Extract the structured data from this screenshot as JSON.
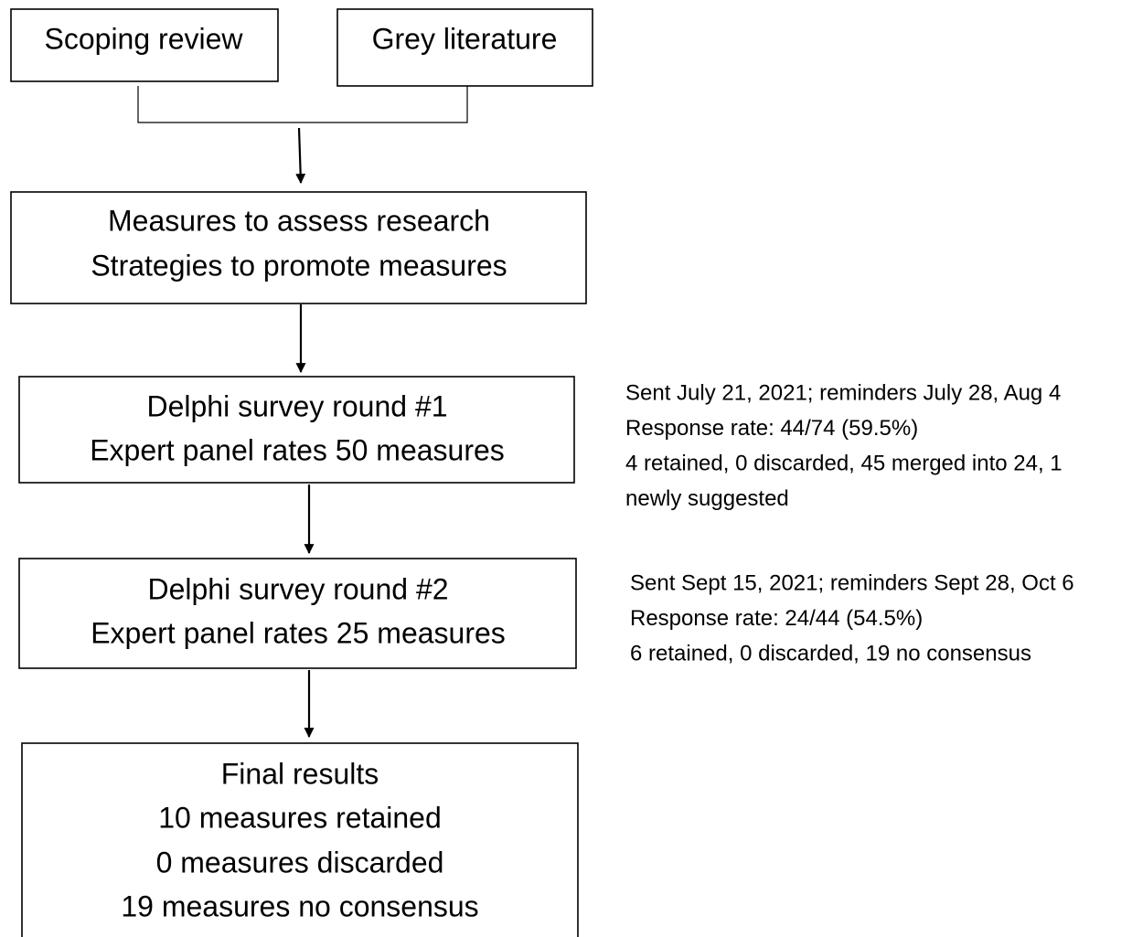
{
  "nodes": [
    {
      "lines": [
        "Scoping review"
      ]
    },
    {
      "lines": [
        "Grey literature"
      ]
    },
    {
      "lines": [
        "Measures to assess research",
        "Strategies to promote measures"
      ]
    },
    {
      "lines": [
        "Delphi survey round #1",
        "Expert panel rates 50 measures"
      ]
    },
    {
      "lines": [
        "Delphi survey round #2",
        "Expert panel rates 25 measures"
      ]
    },
    {
      "lines": [
        "Final results",
        "10 measures retained",
        "0 measures discarded",
        "19 measures no consensus"
      ]
    }
  ],
  "notes": [
    {
      "lines": [
        "Sent July 21, 2021; reminders July 28, Aug 4",
        "Response rate: 44/74 (59.5%)",
        "4 retained, 0 discarded, 45 merged into 24, 1",
        "newly suggested"
      ]
    },
    {
      "lines": [
        "Sent Sept 15, 2021; reminders Sept 28, Oct 6",
        "Response rate: 24/44 (54.5%)",
        "6 retained, 0 discarded, 19 no consensus"
      ]
    }
  ]
}
